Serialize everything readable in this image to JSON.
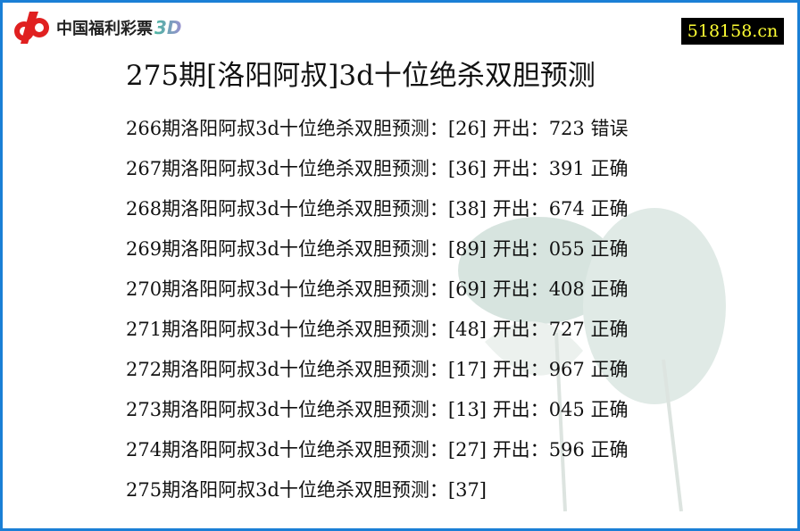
{
  "header": {
    "logo_text": "中国福利彩票",
    "logo_suffix": "3D",
    "site_badge": "518158.cn",
    "brand_color": "#e02020",
    "border_color": "#1a7fd6"
  },
  "title": "275期[洛阳阿叔]3d十位绝杀双胆预测",
  "rows": [
    {
      "label": "266期洛阳阿叔3d十位绝杀双胆预测：",
      "pick": "[26]",
      "drawn_label": "开出：",
      "drawn": "723",
      "result": "错误"
    },
    {
      "label": "267期洛阳阿叔3d十位绝杀双胆预测：",
      "pick": "[36]",
      "drawn_label": "开出：",
      "drawn": "391",
      "result": "正确"
    },
    {
      "label": "268期洛阳阿叔3d十位绝杀双胆预测：",
      "pick": "[38]",
      "drawn_label": "开出：",
      "drawn": "674",
      "result": "正确"
    },
    {
      "label": "269期洛阳阿叔3d十位绝杀双胆预测：",
      "pick": "[89]",
      "drawn_label": "开出：",
      "drawn": "055",
      "result": "正确"
    },
    {
      "label": "270期洛阳阿叔3d十位绝杀双胆预测：",
      "pick": "[69]",
      "drawn_label": "开出：",
      "drawn": "408",
      "result": "正确"
    },
    {
      "label": "271期洛阳阿叔3d十位绝杀双胆预测：",
      "pick": "[48]",
      "drawn_label": "开出：",
      "drawn": "727",
      "result": "正确"
    },
    {
      "label": "272期洛阳阿叔3d十位绝杀双胆预测：",
      "pick": "[17]",
      "drawn_label": "开出：",
      "drawn": "967",
      "result": "正确"
    },
    {
      "label": "273期洛阳阿叔3d十位绝杀双胆预测：",
      "pick": "[13]",
      "drawn_label": "开出：",
      "drawn": "045",
      "result": "正确"
    },
    {
      "label": "274期洛阳阿叔3d十位绝杀双胆预测：",
      "pick": "[27]",
      "drawn_label": "开出：",
      "drawn": "596",
      "result": "正确"
    },
    {
      "label": "275期洛阳阿叔3d十位绝杀双胆预测：",
      "pick": "[37]"
    }
  ]
}
